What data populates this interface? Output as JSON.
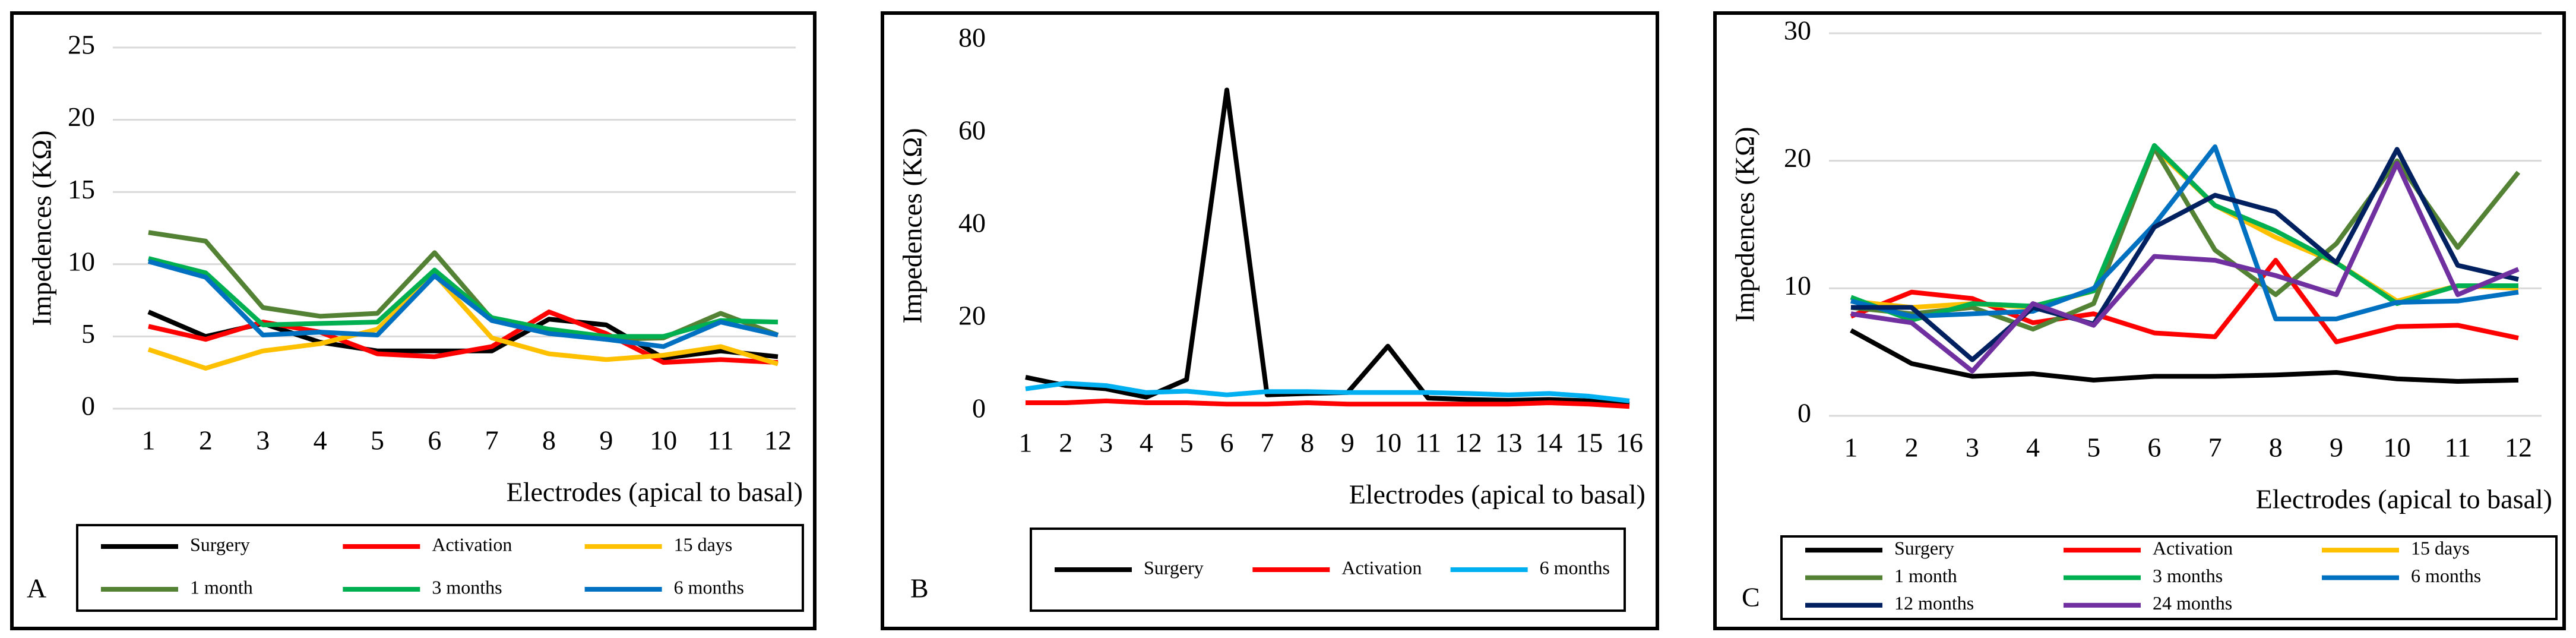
{
  "chart_data": [
    {
      "type": "line",
      "panel_label": "A",
      "y_label": "Impedences (KΩ)",
      "x_label": "Electrodes (apical to basal)",
      "categories": [
        "1",
        "2",
        "3",
        "4",
        "5",
        "6",
        "7",
        "8",
        "9",
        "10",
        "11",
        "12"
      ],
      "ylim": [
        0,
        25
      ],
      "yticks": [
        0,
        5,
        10,
        15,
        20,
        25
      ],
      "grid": true,
      "series": [
        {
          "name": "Surgery",
          "color": "#000000",
          "values": [
            6.7,
            5.0,
            5.9,
            4.6,
            4.0,
            4.0,
            4.0,
            6.2,
            5.8,
            3.5,
            4.0,
            3.6
          ]
        },
        {
          "name": "Activation",
          "color": "#ff0000",
          "values": [
            5.7,
            4.8,
            6.0,
            5.3,
            3.8,
            3.6,
            4.3,
            6.7,
            5.2,
            3.2,
            3.4,
            3.2
          ]
        },
        {
          "name": "15 days",
          "color": "#ffc000",
          "values": [
            4.1,
            2.8,
            4.0,
            4.5,
            5.5,
            9.3,
            4.9,
            3.8,
            3.4,
            3.7,
            4.3,
            3.1
          ]
        },
        {
          "name": "1 month",
          "color": "#548235",
          "values": [
            12.2,
            11.6,
            7.0,
            6.4,
            6.6,
            10.8,
            6.2,
            5.3,
            4.8,
            4.9,
            6.6,
            5.1
          ]
        },
        {
          "name": "3 months",
          "color": "#00b050",
          "values": [
            10.4,
            9.4,
            5.8,
            5.9,
            6.0,
            9.6,
            6.3,
            5.5,
            5.0,
            5.0,
            6.1,
            6.0
          ]
        },
        {
          "name": "6 months",
          "color": "#0070c0",
          "values": [
            10.2,
            9.1,
            5.1,
            5.3,
            5.1,
            9.2,
            6.1,
            5.2,
            4.8,
            4.3,
            6.0,
            5.1
          ]
        }
      ]
    },
    {
      "type": "line",
      "panel_label": "B",
      "y_label": "Impedences (KΩ)",
      "x_label": "Electrodes (apical to basal)",
      "categories": [
        "1",
        "2",
        "3",
        "4",
        "5",
        "6",
        "7",
        "8",
        "9",
        "10",
        "11",
        "12",
        "13",
        "14",
        "15",
        "16"
      ],
      "ylim": [
        0,
        80
      ],
      "yticks": [
        0,
        20,
        40,
        60,
        80
      ],
      "grid": false,
      "series": [
        {
          "name": "Surgery",
          "color": "#000000",
          "values": [
            7.3,
            5.5,
            4.8,
            3.0,
            6.8,
            69.3,
            3.5,
            3.8,
            4.0,
            14.0,
            2.8,
            2.5,
            2.3,
            2.5,
            2.2,
            1.5
          ]
        },
        {
          "name": "Activation",
          "color": "#ff0000",
          "values": [
            1.8,
            1.8,
            2.2,
            1.8,
            1.8,
            1.5,
            1.5,
            1.8,
            1.5,
            1.5,
            1.5,
            1.5,
            1.5,
            1.8,
            1.5,
            1.0
          ]
        },
        {
          "name": "6 months",
          "color": "#00b0f0",
          "values": [
            4.8,
            6.0,
            5.5,
            4.0,
            4.3,
            3.5,
            4.2,
            4.2,
            4.0,
            4.0,
            4.0,
            3.8,
            3.5,
            3.8,
            3.2,
            2.2
          ]
        }
      ]
    },
    {
      "type": "line",
      "panel_label": "C",
      "y_label": "Impedences (KΩ)",
      "x_label": "Electrodes (apical to basal)",
      "categories": [
        "1",
        "2",
        "3",
        "4",
        "5",
        "6",
        "7",
        "8",
        "9",
        "10",
        "11",
        "12"
      ],
      "ylim": [
        0,
        30
      ],
      "yticks": [
        0,
        10,
        20,
        30
      ],
      "grid": true,
      "series": [
        {
          "name": "Surgery",
          "color": "#000000",
          "values": [
            6.7,
            4.1,
            3.1,
            3.3,
            2.8,
            3.1,
            3.1,
            3.2,
            3.4,
            2.9,
            2.7,
            2.8
          ]
        },
        {
          "name": "Activation",
          "color": "#ff0000",
          "values": [
            7.8,
            9.7,
            9.2,
            7.3,
            8.0,
            6.5,
            6.2,
            12.2,
            5.8,
            7.0,
            7.1,
            6.1
          ]
        },
        {
          "name": "15 days",
          "color": "#ffc000",
          "values": [
            9.0,
            8.5,
            8.8,
            8.5,
            9.8,
            21.0,
            16.5,
            14.0,
            12.0,
            9.0,
            10.2,
            10.0
          ]
        },
        {
          "name": "1 month",
          "color": "#548235",
          "values": [
            8.5,
            8.0,
            8.5,
            6.8,
            8.8,
            21.0,
            13.0,
            9.5,
            13.5,
            20.0,
            13.2,
            19.1
          ]
        },
        {
          "name": "3 months",
          "color": "#00b050",
          "values": [
            9.3,
            7.5,
            8.8,
            8.6,
            9.8,
            21.2,
            16.5,
            14.5,
            12.0,
            8.8,
            10.2,
            10.2
          ]
        },
        {
          "name": "6 months",
          "color": "#0070c0",
          "values": [
            9.0,
            7.8,
            8.0,
            8.2,
            10.0,
            15.0,
            21.1,
            7.6,
            7.6,
            8.9,
            9.0,
            9.7
          ]
        },
        {
          "name": "12 months",
          "color": "#002060",
          "values": [
            8.5,
            8.5,
            4.4,
            8.5,
            7.2,
            14.8,
            17.3,
            16.0,
            12.0,
            20.9,
            11.8,
            10.7
          ]
        },
        {
          "name": "24 months",
          "color": "#7030a0",
          "values": [
            8.0,
            7.3,
            3.5,
            8.8,
            7.1,
            12.5,
            12.2,
            11.0,
            9.5,
            19.8,
            9.5,
            11.5
          ]
        }
      ]
    }
  ]
}
